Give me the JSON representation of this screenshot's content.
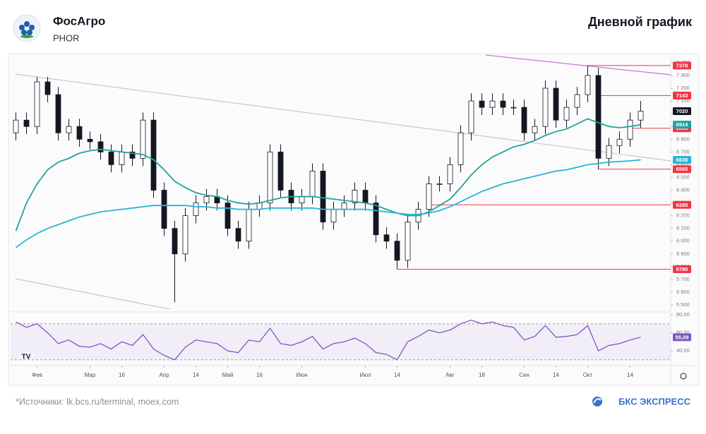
{
  "header": {
    "title": "ФосАгро",
    "ticker": "PHOR",
    "chart_kind": "Дневной график"
  },
  "chart_data": [
    {
      "type": "candlestick",
      "categories": [
        null,
        null,
        "Фев",
        null,
        null,
        null,
        null,
        "Мар",
        null,
        null,
        "16",
        null,
        null,
        null,
        "Апр",
        null,
        null,
        "14",
        null,
        null,
        "Май",
        null,
        null,
        "16",
        null,
        null,
        null,
        "Июн",
        null,
        null,
        null,
        null,
        null,
        "Июл",
        null,
        null,
        "14",
        null,
        null,
        null,
        null,
        "Авг",
        null,
        null,
        "18",
        null,
        null,
        null,
        "Сен",
        null,
        null,
        "14",
        null,
        null,
        "Окт",
        null,
        null,
        null,
        "14",
        null
      ],
      "open": [
        6850,
        6950,
        6900,
        7250,
        7150,
        6850,
        6900,
        6800,
        6780,
        6700,
        6600,
        6700,
        6650,
        6950,
        6400,
        6100,
        5900,
        6200,
        6300,
        6350,
        6300,
        6100,
        6000,
        6250,
        6300,
        6700,
        6400,
        6300,
        6350,
        6550,
        6150,
        6250,
        6300,
        6400,
        6300,
        6050,
        6000,
        5850,
        6150,
        6250,
        6450,
        6450,
        6600,
        6850,
        7100,
        7050,
        7100,
        7050,
        7050,
        6850,
        6900,
        7200,
        6950,
        7050,
        7150,
        7300,
        6650,
        6750,
        6800,
        6950
      ],
      "high": [
        7010,
        7010,
        7290,
        7290,
        7210,
        6960,
        6960,
        6860,
        6840,
        6760,
        6760,
        6760,
        7010,
        7010,
        6460,
        6160,
        6260,
        6360,
        6410,
        6410,
        6360,
        6160,
        6310,
        6360,
        6760,
        6760,
        6460,
        6410,
        6610,
        6610,
        6310,
        6360,
        6460,
        6460,
        6360,
        6110,
        6060,
        6210,
        6310,
        6510,
        6510,
        6660,
        6910,
        7160,
        7160,
        7160,
        7160,
        7110,
        7110,
        6960,
        7260,
        7260,
        7110,
        7210,
        7378,
        7360,
        6810,
        6860,
        7010,
        7100
      ],
      "low": [
        6790,
        6840,
        6840,
        7090,
        6790,
        6790,
        6740,
        6720,
        6640,
        6540,
        6540,
        6590,
        6590,
        6340,
        6040,
        5520,
        5840,
        6140,
        6240,
        6240,
        6040,
        5940,
        5940,
        6190,
        6240,
        6340,
        6240,
        6240,
        6290,
        6090,
        6090,
        6190,
        6240,
        6240,
        5990,
        5940,
        5780,
        5790,
        6090,
        6190,
        6390,
        6390,
        6540,
        6790,
        6990,
        6990,
        6990,
        6990,
        6790,
        6790,
        6840,
        6890,
        6890,
        6990,
        7090,
        6565,
        6590,
        6690,
        6740,
        6890
      ],
      "close": [
        6950,
        6900,
        7250,
        7150,
        6850,
        6900,
        6800,
        6780,
        6700,
        6600,
        6700,
        6650,
        6950,
        6400,
        6100,
        5900,
        6200,
        6300,
        6350,
        6300,
        6100,
        6000,
        6250,
        6300,
        6700,
        6400,
        6300,
        6350,
        6550,
        6150,
        6250,
        6300,
        6400,
        6300,
        6050,
        6000,
        5850,
        6150,
        6250,
        6450,
        6450,
        6600,
        6850,
        7100,
        7050,
        7100,
        7050,
        7050,
        6850,
        6900,
        7200,
        6950,
        7050,
        7150,
        7300,
        6650,
        6750,
        6800,
        6950,
        7020
      ],
      "up_color": "#ffffff",
      "down_color": "#131722",
      "moving_averages": [
        {
          "color": "#1fa39a",
          "values": [
            6080,
            6300,
            6450,
            6560,
            6620,
            6650,
            6690,
            6710,
            6720,
            6710,
            6700,
            6690,
            6680,
            6640,
            6560,
            6470,
            6420,
            6380,
            6360,
            6350,
            6320,
            6300,
            6290,
            6300,
            6320,
            6340,
            6350,
            6350,
            6350,
            6340,
            6330,
            6320,
            6310,
            6300,
            6280,
            6250,
            6220,
            6200,
            6200,
            6230,
            6280,
            6330,
            6420,
            6520,
            6600,
            6660,
            6700,
            6740,
            6760,
            6790,
            6830,
            6860,
            6880,
            6920,
            6960,
            6930,
            6900,
            6890,
            6900,
            6914
          ]
        },
        {
          "color": "#26b6d4",
          "values": [
            5950,
            6010,
            6060,
            6100,
            6130,
            6160,
            6190,
            6210,
            6230,
            6240,
            6250,
            6260,
            6270,
            6280,
            6280,
            6280,
            6280,
            6270,
            6270,
            6260,
            6260,
            6250,
            6250,
            6250,
            6260,
            6260,
            6260,
            6260,
            6260,
            6250,
            6250,
            6250,
            6250,
            6250,
            6240,
            6230,
            6220,
            6210,
            6210,
            6220,
            6240,
            6270,
            6310,
            6350,
            6390,
            6420,
            6450,
            6470,
            6490,
            6510,
            6530,
            6550,
            6560,
            6580,
            6600,
            6610,
            6620,
            6625,
            6630,
            6638
          ]
        }
      ],
      "levels": [
        7378,
        7143,
        6886,
        6565,
        6285,
        5780
      ],
      "level_color": "#f23645",
      "price_tags": [
        {
          "value": 7020,
          "color": "#131722"
        },
        {
          "value": 6914,
          "color": "#1fa39a"
        },
        {
          "value": 6638,
          "color": "#26b6d4"
        }
      ],
      "ylim": [
        5456,
        7477
      ],
      "yticks": [
        {
          "value": 5500,
          "label": "5 500"
        },
        {
          "value": 5600,
          "label": "5 600"
        },
        {
          "value": 5700,
          "label": "5 700"
        },
        {
          "value": 5800,
          "label": "5 800"
        },
        {
          "value": 5900,
          "label": "5 900"
        },
        {
          "value": 6000,
          "label": "6 000"
        },
        {
          "value": 6100,
          "label": "6 100"
        },
        {
          "value": 6200,
          "label": "6 200"
        },
        {
          "value": 6300,
          "label": "6 300"
        },
        {
          "value": 6400,
          "label": "6 400"
        },
        {
          "value": 6500,
          "label": "6 500"
        },
        {
          "value": 6600,
          "label": "6 600"
        },
        {
          "value": 6700,
          "label": "6 700"
        },
        {
          "value": 6800,
          "label": "6 800"
        },
        {
          "value": 6900,
          "label": "6 900"
        },
        {
          "value": 7000,
          "label": "7 000"
        },
        {
          "value": 7100,
          "label": "7 100"
        },
        {
          "value": 7200,
          "label": "7 200"
        },
        {
          "value": 7300,
          "label": "7 300"
        },
        {
          "value": 7400,
          "label": "7 400"
        }
      ]
    },
    {
      "type": "line",
      "color": "#7e57c2",
      "values": [
        72,
        66,
        70,
        60,
        48,
        52,
        45,
        44,
        48,
        42,
        50,
        46,
        58,
        42,
        35,
        30,
        44,
        52,
        50,
        48,
        40,
        38,
        52,
        50,
        65,
        48,
        46,
        50,
        56,
        42,
        48,
        50,
        54,
        48,
        38,
        36,
        30,
        50,
        56,
        63,
        60,
        63,
        70,
        74,
        70,
        72,
        68,
        66,
        52,
        56,
        68,
        55,
        56,
        58,
        68,
        40,
        46,
        48,
        52,
        55.09
      ],
      "value_labels": {
        "59": "55,09"
      },
      "band": [
        30,
        70
      ],
      "ylim": [
        26,
        80.8
      ],
      "yticks": [
        {
          "value": 80,
          "label": "80,00"
        },
        {
          "value": 60,
          "label": "60,00"
        },
        {
          "value": 40,
          "label": "40,00"
        }
      ]
    }
  ],
  "footer": {
    "sources": "*Источники: lk.bcs.ru/terminal, moex.com",
    "brand": "БКС ЭКСПРЕСС"
  }
}
